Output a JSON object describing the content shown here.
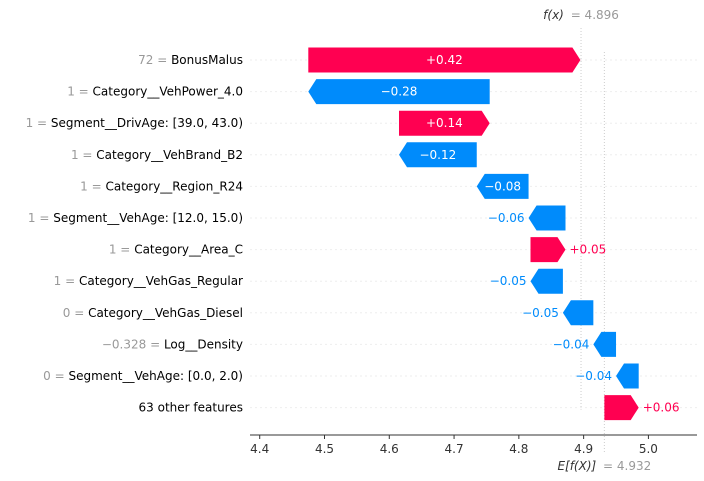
{
  "chart_data": {
    "type": "waterfall",
    "fx_label": "f(x)",
    "fx_value": "= 4.896",
    "efx_label": "E[f(X)]",
    "efx_value": "= 4.932",
    "base_value": 4.932,
    "fx": 4.896,
    "xlim": [
      4.385,
      5.075
    ],
    "xticks": [
      "4.4",
      "4.5",
      "4.6",
      "4.7",
      "4.8",
      "4.9",
      "5.0"
    ],
    "tick_values": [
      4.4,
      4.5,
      4.6,
      4.7,
      4.8,
      4.9,
      5.0
    ],
    "colors": {
      "positive": "#ff0051",
      "negative": "#008bfb",
      "grid": "#cccccc",
      "muted": "#999999"
    },
    "features": [
      {
        "value": "72",
        "name": "BonusMalus",
        "label": "+0.42",
        "start": 4.475,
        "end": 4.895
      },
      {
        "value": "1",
        "name": "Category__VehPower_4.0",
        "label": "−0.28",
        "start": 4.755,
        "end": 4.475
      },
      {
        "value": "1",
        "name": "Segment__DrivAge: [39.0, 43.0)",
        "label": "+0.14",
        "start": 4.615,
        "end": 4.755
      },
      {
        "value": "1",
        "name": "Category__VehBrand_B2",
        "label": "−0.12",
        "start": 4.735,
        "end": 4.615
      },
      {
        "value": "1",
        "name": "Category__Region_R24",
        "label": "−0.08",
        "start": 4.815,
        "end": 4.735
      },
      {
        "value": "1",
        "name": "Segment__VehAge: [12.0, 15.0)",
        "label": "−0.06",
        "start": 4.872,
        "end": 4.815
      },
      {
        "value": "1",
        "name": "Category__Area_C",
        "label": "+0.05",
        "start": 4.818,
        "end": 4.872
      },
      {
        "value": "1",
        "name": "Category__VehGas_Regular",
        "label": "−0.05",
        "start": 4.868,
        "end": 4.818
      },
      {
        "value": "0",
        "name": "Category__VehGas_Diesel",
        "label": "−0.05",
        "start": 4.915,
        "end": 4.868
      },
      {
        "value": "−0.328",
        "name": "Log__Density",
        "label": "−0.04",
        "start": 4.95,
        "end": 4.915
      },
      {
        "value": "0",
        "name": "Segment__VehAge: [0.0, 2.0)",
        "label": "−0.04",
        "start": 4.985,
        "end": 4.95
      },
      {
        "value": "",
        "name": "63 other features",
        "label": "+0.06",
        "start": 4.932,
        "end": 4.985
      }
    ]
  }
}
